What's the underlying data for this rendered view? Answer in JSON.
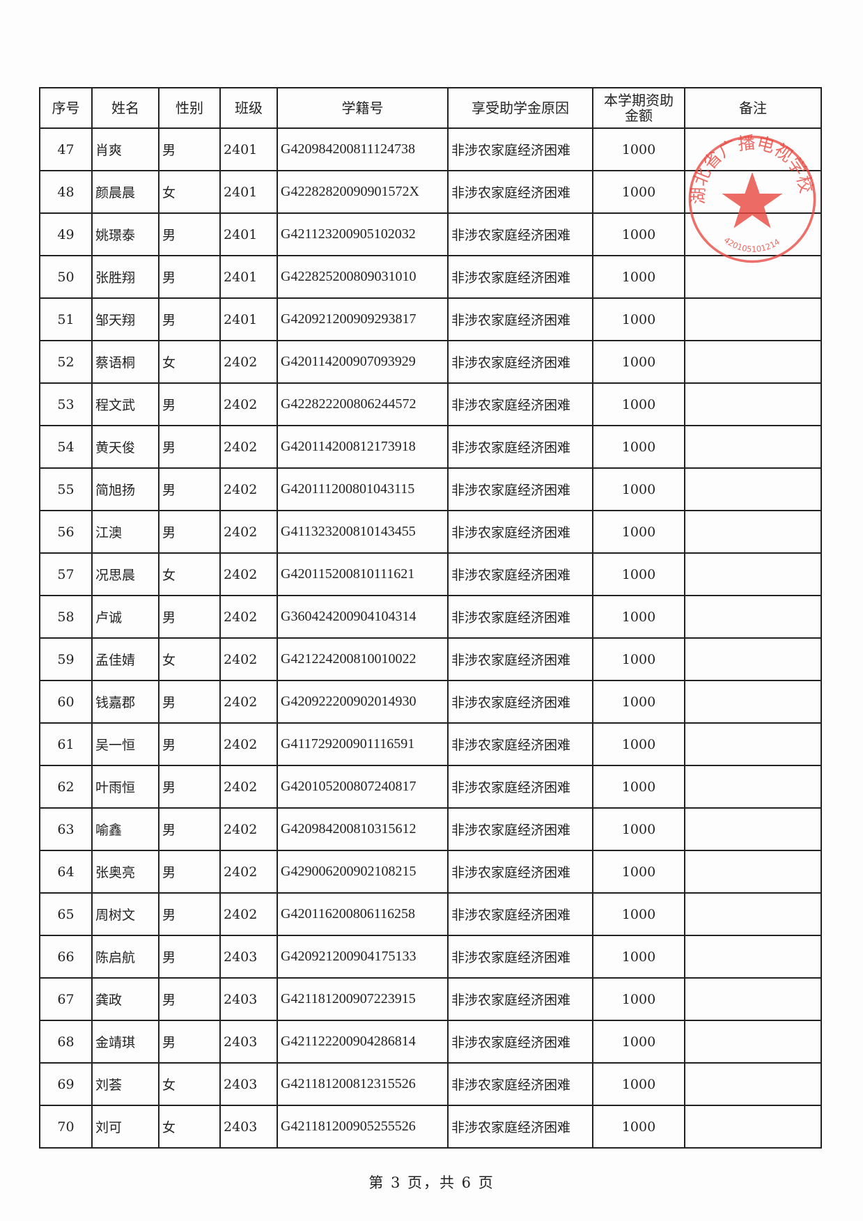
{
  "table": {
    "headers": [
      "序号",
      "姓名",
      "性别",
      "班级",
      "学籍号",
      "享受助学金原因",
      "本学期资助金额",
      "备注"
    ],
    "rows": [
      [
        "47",
        "肖爽",
        "男",
        "2401",
        "G420984200811124738",
        "非涉农家庭经济困难",
        "1000",
        ""
      ],
      [
        "48",
        "颜晨晨",
        "女",
        "2401",
        "G42282820090901572X",
        "非涉农家庭经济困难",
        "1000",
        ""
      ],
      [
        "49",
        "姚璟泰",
        "男",
        "2401",
        "G421123200905102032",
        "非涉农家庭经济困难",
        "1000",
        ""
      ],
      [
        "50",
        "张胜翔",
        "男",
        "2401",
        "G422825200809031010",
        "非涉农家庭经济困难",
        "1000",
        ""
      ],
      [
        "51",
        "邹天翔",
        "男",
        "2401",
        "G420921200909293817",
        "非涉农家庭经济困难",
        "1000",
        ""
      ],
      [
        "52",
        "蔡语桐",
        "女",
        "2402",
        "G420114200907093929",
        "非涉农家庭经济困难",
        "1000",
        ""
      ],
      [
        "53",
        "程文武",
        "男",
        "2402",
        "G422822200806244572",
        "非涉农家庭经济困难",
        "1000",
        ""
      ],
      [
        "54",
        "黄天俊",
        "男",
        "2402",
        "G420114200812173918",
        "非涉农家庭经济困难",
        "1000",
        ""
      ],
      [
        "55",
        "简旭扬",
        "男",
        "2402",
        "G420111200801043115",
        "非涉农家庭经济困难",
        "1000",
        ""
      ],
      [
        "56",
        "江澳",
        "男",
        "2402",
        "G411323200810143455",
        "非涉农家庭经济困难",
        "1000",
        ""
      ],
      [
        "57",
        "况思晨",
        "女",
        "2402",
        "G420115200810111621",
        "非涉农家庭经济困难",
        "1000",
        ""
      ],
      [
        "58",
        "卢诚",
        "男",
        "2402",
        "G360424200904104314",
        "非涉农家庭经济困难",
        "1000",
        ""
      ],
      [
        "59",
        "孟佳婧",
        "女",
        "2402",
        "G421224200810010022",
        "非涉农家庭经济困难",
        "1000",
        ""
      ],
      [
        "60",
        "钱嘉郡",
        "男",
        "2402",
        "G420922200902014930",
        "非涉农家庭经济困难",
        "1000",
        ""
      ],
      [
        "61",
        "吴一恒",
        "男",
        "2402",
        "G411729200901116591",
        "非涉农家庭经济困难",
        "1000",
        ""
      ],
      [
        "62",
        "叶雨恒",
        "男",
        "2402",
        "G420105200807240817",
        "非涉农家庭经济困难",
        "1000",
        ""
      ],
      [
        "63",
        "喻鑫",
        "男",
        "2402",
        "G420984200810315612",
        "非涉农家庭经济困难",
        "1000",
        ""
      ],
      [
        "64",
        "张奥亮",
        "男",
        "2402",
        "G429006200902108215",
        "非涉农家庭经济困难",
        "1000",
        ""
      ],
      [
        "65",
        "周树文",
        "男",
        "2402",
        "G420116200806116258",
        "非涉农家庭经济困难",
        "1000",
        ""
      ],
      [
        "66",
        "陈启航",
        "男",
        "2403",
        "G420921200904175133",
        "非涉农家庭经济困难",
        "1000",
        ""
      ],
      [
        "67",
        "龚政",
        "男",
        "2403",
        "G421181200907223915",
        "非涉农家庭经济困难",
        "1000",
        ""
      ],
      [
        "68",
        "金靖琪",
        "男",
        "2403",
        "G421122200904286814",
        "非涉农家庭经济困难",
        "1000",
        ""
      ],
      [
        "69",
        "刘荟",
        "女",
        "2403",
        "G421181200812315526",
        "非涉农家庭经济困难",
        "1000",
        ""
      ],
      [
        "70",
        "刘可",
        "女",
        "2403",
        "G421181200905255526",
        "非涉农家庭经济困难",
        "1000",
        ""
      ]
    ]
  },
  "stamp": {
    "text": "湖北省广播电视学校",
    "code": "420105101214",
    "color": "#e8473f"
  },
  "footer": {
    "page_label": "第 3 页，共 6 页"
  }
}
